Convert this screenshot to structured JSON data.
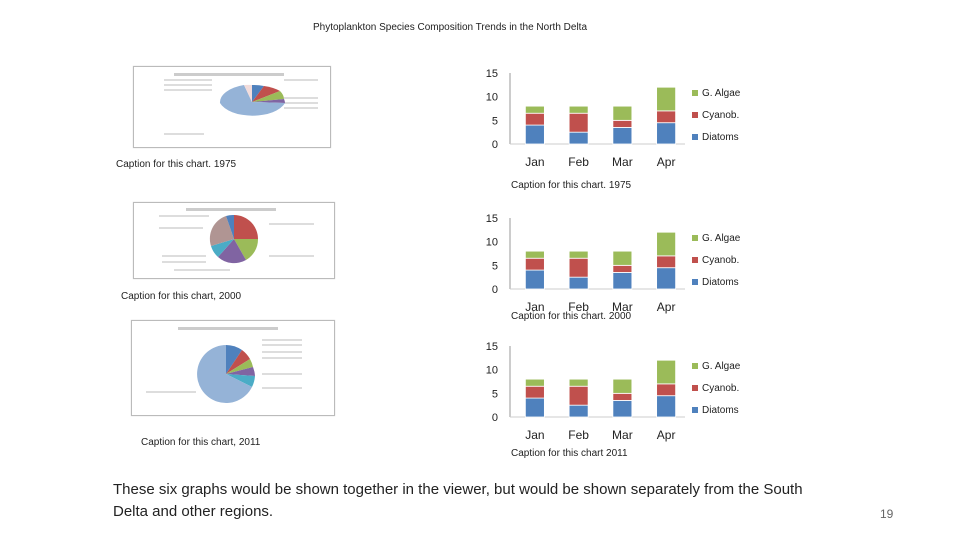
{
  "slide": {
    "title": "Phytoplankton Species Composition Trends in the North Delta",
    "body_text": "These six graphs would be shown together in the viewer, but would be shown separately from the South Delta and other regions.",
    "page_number": "19"
  },
  "pie_captions": [
    "Caption for this chart. 1975",
    "Caption for this chart, 2000",
    "Caption for this chart, 2011"
  ],
  "bar_captions": [
    "Caption for this chart. 1975",
    "Caption for this chart. 2000",
    "Caption for this chart 2011"
  ],
  "colors": {
    "diatoms": "#4f81bd",
    "cyanob": "#c0504d",
    "g_algae": "#9bbb59"
  },
  "chart_data": [
    {
      "type": "bar",
      "stacked": true,
      "categories": [
        "Jan",
        "Feb",
        "Mar",
        "Apr"
      ],
      "series": [
        {
          "name": "Diatoms",
          "values": [
            4,
            2.5,
            3.5,
            4.5
          ]
        },
        {
          "name": "Cyanob.",
          "values": [
            2.5,
            4,
            1.5,
            2.5
          ]
        },
        {
          "name": "G. Algae",
          "values": [
            1.5,
            1.5,
            3,
            5
          ]
        }
      ],
      "yticks": [
        "15",
        "10",
        "5",
        "0"
      ],
      "ylim": [
        0,
        15
      ],
      "legend": "right"
    },
    {
      "type": "bar",
      "stacked": true,
      "categories": [
        "Jan",
        "Feb",
        "Mar",
        "Apr"
      ],
      "series": [
        {
          "name": "Diatoms",
          "values": [
            4,
            2.5,
            3.5,
            4.5
          ]
        },
        {
          "name": "Cyanob.",
          "values": [
            2.5,
            4,
            1.5,
            2.5
          ]
        },
        {
          "name": "G. Algae",
          "values": [
            1.5,
            1.5,
            3,
            5
          ]
        }
      ],
      "yticks": [
        "15",
        "10",
        "5",
        "0"
      ],
      "ylim": [
        0,
        15
      ],
      "legend": "right"
    },
    {
      "type": "bar",
      "stacked": true,
      "categories": [
        "Jan",
        "Feb",
        "Mar",
        "Apr"
      ],
      "series": [
        {
          "name": "Diatoms",
          "values": [
            4,
            2.5,
            3.5,
            4.5
          ]
        },
        {
          "name": "Cyanob.",
          "values": [
            2.5,
            4,
            1.5,
            2.5
          ]
        },
        {
          "name": "G. Algae",
          "values": [
            1.5,
            1.5,
            3,
            5
          ]
        }
      ],
      "yticks": [
        "15",
        "10",
        "5",
        "0"
      ],
      "ylim": [
        0,
        15
      ],
      "legend": "right"
    }
  ]
}
